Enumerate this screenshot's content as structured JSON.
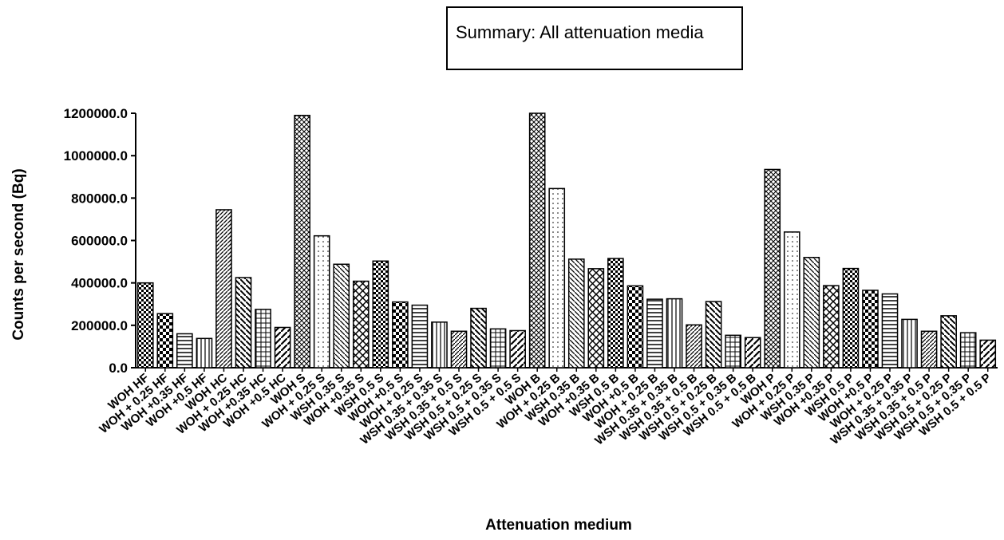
{
  "chart_data": {
    "type": "bar",
    "title": "Summary: All attenuation media",
    "xlabel": "Attenuation medium",
    "ylabel": "Counts per second (Bq)",
    "ylim": [
      0,
      1200000
    ],
    "yticks": [
      "0.0",
      "200000.0",
      "400000.0",
      "600000.0",
      "800000.0",
      "1000000.0",
      "1200000.0"
    ],
    "grid": false,
    "categories": [
      "WOH HF",
      "WOH + 0.25 HF",
      "WOH +0.35 HF",
      "WOH +0.5 HF",
      "WOH HC",
      "WOH + 0.25 HC",
      "WOH +0.35 HC",
      "WOH +0.5 HC",
      "WOH S",
      "WOH + 0.25 S",
      "WSH 0.35 S",
      "WOH +0.35 S",
      "WSH 0.5 S",
      "WOH +0.5 S",
      "WOH + 0.25 S",
      "WSH 0.35 + 0.35 S",
      "WSH 0.35 + 0.5 S",
      "WSH 0.5 + 0.25 S",
      "WSH 0.5 + 0.35 S",
      "WSH 0.5 + 0.5 S",
      "WOH B",
      "WOH + 0.25 B",
      "WSH 0.35 B",
      "WOH +0.35 B",
      "WSH 0.5 B",
      "WOH +0.5 B",
      "WOH + 0.25 B",
      "WSH 0.35 + 0.35 B",
      "WSH 0.35 + 0.5 B",
      "WSH 0.5 + 0.25 B",
      "WSH 0.5 + 0.35 B",
      "WSH 0.5 + 0.5 B",
      "WOH P",
      "WOH + 0.25 P",
      "WSH 0.35 P",
      "WOH +0.35 P",
      "WSH 0.5 P",
      "WOH +0.5 P",
      "WOH + 0.25 P",
      "WSH 0.35 + 0.35 P",
      "WSH 0.35 + 0.5 P",
      "WSH 0.5 + 0.25 P",
      "WSH 0.5 + 0.35 P",
      "WSH 0.5 + 0.5 P"
    ],
    "values": [
      400000,
      255000,
      160000,
      138000,
      745000,
      425000,
      275000,
      190000,
      1190000,
      622000,
      488000,
      408000,
      503000,
      310000,
      295000,
      215000,
      172000,
      280000,
      183000,
      175000,
      1200000,
      845000,
      512000,
      467000,
      515000,
      386000,
      323000,
      325000,
      202000,
      312000,
      153000,
      142000,
      935000,
      640000,
      520000,
      387000,
      468000,
      365000,
      348000,
      228000,
      172000,
      245000,
      165000,
      130000
    ]
  }
}
